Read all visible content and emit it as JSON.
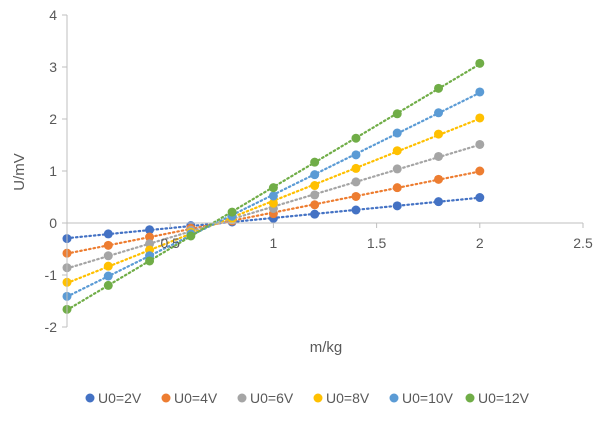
{
  "chart_data": {
    "type": "scatter",
    "title": "",
    "xlabel": "m/kg",
    "ylabel": "U/mV",
    "xlim": [
      0,
      2.5
    ],
    "ylim": [
      -2,
      4
    ],
    "x_ticks": [
      "0",
      "0.5",
      "1",
      "1.5",
      "2",
      "2.5"
    ],
    "y_ticks": [
      "-2",
      "-1",
      "0",
      "1",
      "2",
      "3",
      "4"
    ],
    "x_tick_values": [
      0,
      0.5,
      1,
      1.5,
      2,
      2.5
    ],
    "y_tick_values": [
      -2,
      -1,
      0,
      1,
      2,
      3,
      4
    ],
    "grid": false,
    "legend_position": "bottom",
    "trendlines": "dotted linear",
    "x": [
      0,
      0.2,
      0.4,
      0.6,
      0.8,
      1.0,
      1.2,
      1.4,
      1.6,
      1.8,
      2.0
    ],
    "series": [
      {
        "name": "U0=2V",
        "color": "#4472C4",
        "values": [
          -0.3,
          -0.21,
          -0.13,
          -0.05,
          0.02,
          0.09,
          0.17,
          0.25,
          0.33,
          0.41,
          0.49
        ]
      },
      {
        "name": "U0=4V",
        "color": "#ED7D31",
        "values": [
          -0.58,
          -0.43,
          -0.27,
          -0.1,
          0.04,
          0.18,
          0.35,
          0.51,
          0.68,
          0.84,
          1.0
        ]
      },
      {
        "name": "U0=6V",
        "color": "#A5A5A5",
        "values": [
          -0.86,
          -0.63,
          -0.4,
          -0.14,
          0.06,
          0.28,
          0.54,
          0.79,
          1.04,
          1.28,
          1.51
        ]
      },
      {
        "name": "U0=8V",
        "color": "#FFC000",
        "values": [
          -1.14,
          -0.83,
          -0.52,
          -0.18,
          0.09,
          0.38,
          0.72,
          1.05,
          1.39,
          1.71,
          2.02
        ]
      },
      {
        "name": "U0=10V",
        "color": "#5B9BD5",
        "values": [
          -1.41,
          -1.02,
          -0.63,
          -0.21,
          0.13,
          0.52,
          0.93,
          1.31,
          1.73,
          2.12,
          2.52
        ]
      },
      {
        "name": "U0=12V",
        "color": "#70AD47",
        "values": [
          -1.66,
          -1.2,
          -0.73,
          -0.25,
          0.21,
          0.68,
          1.17,
          1.63,
          2.1,
          2.59,
          3.07
        ]
      }
    ]
  }
}
